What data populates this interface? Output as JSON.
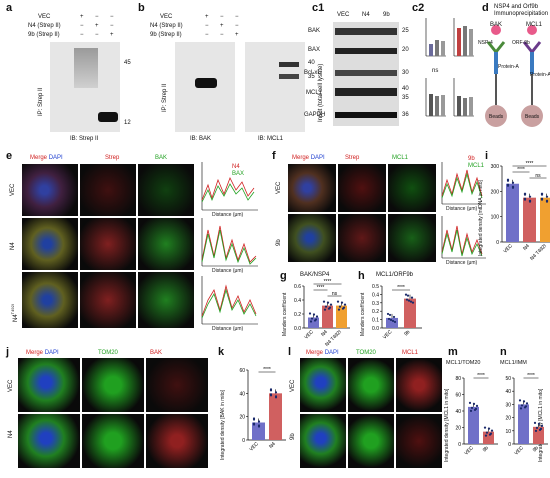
{
  "panels": {
    "a": {
      "label": "a",
      "rows": [
        "VEC",
        "N4 (Strep II)",
        "9b (Strep II)"
      ],
      "marks": [
        [
          "+",
          "−",
          "−"
        ],
        [
          "−",
          "+",
          "−"
        ],
        [
          "−",
          "−",
          "+"
        ]
      ],
      "side": "IP: Strep II",
      "ib": "IB: Strep II",
      "mw": [
        "45",
        "12"
      ]
    },
    "b": {
      "label": "b",
      "rows": [
        "VEC",
        "N4 (Strep II)",
        "9b (Strep II)"
      ],
      "marks": [
        [
          "+",
          "−",
          "−"
        ],
        [
          "−",
          "+",
          "−"
        ],
        [
          "−",
          "−",
          "+"
        ]
      ],
      "side": "IP: Strep II",
      "ib1": "IB: BAK",
      "ib2": "IB: MCL1",
      "mw": [
        "40",
        "35"
      ]
    },
    "c1": {
      "label": "c1",
      "cols": [
        "VEC",
        "N4",
        "9b"
      ],
      "side": "Input (total cell lysate)",
      "proteins": [
        "BAK",
        "BAX",
        "Bcl-xL",
        "MCL1",
        "GAPDH"
      ],
      "mw": [
        "25",
        "20",
        "30",
        "40",
        "35",
        "36"
      ]
    },
    "c2": {
      "label": "c2",
      "ns": "ns"
    },
    "d": {
      "label": "d",
      "title1": "NSP4 and Orf9b",
      "title2": "Immunoprecipitation",
      "bak": "BAK",
      "mcl1": "MCL1",
      "nsp4": "NSP-4",
      "orf9b": "ORF-9b",
      "protein_a": "Protein-A",
      "beads": "Beads"
    },
    "e": {
      "label": "e",
      "merge": "Merge",
      "dapi": "DAPI",
      "strep": "Strep",
      "bak": "BAK",
      "rows": [
        "VEC",
        "N4",
        "N4"
      ],
      "sup": "T492I",
      "leg1": "N4",
      "leg2": "BAX",
      "xlab": "Distance (μm)"
    },
    "f": {
      "label": "f",
      "merge": "Merge",
      "dapi": "DAPI",
      "strep": "Strep",
      "mcl1": "MCL1",
      "rows": [
        "VEC",
        "9b"
      ],
      "leg1": "9b",
      "leg2": "MCL1",
      "xlab": "Distance (μm)"
    },
    "i": {
      "label": "i",
      "ylab": "Integrated density [mtDNA in mito]",
      "sig1": "****",
      "sig2": "****",
      "ns": "ns"
    },
    "g": {
      "label": "g",
      "title": "BAK/NSP4",
      "ylab": "Manders coefficient",
      "sig1": "****",
      "sig2": "****",
      "ns": "ns"
    },
    "h": {
      "label": "h",
      "title": "MCL1/ORF9b",
      "ylab": "Manders coefficient",
      "sig": "****"
    },
    "j": {
      "label": "j",
      "merge": "Merge",
      "dapi": "DAPI",
      "tom20": "TOM20",
      "bak": "BAK",
      "rows": [
        "VEC",
        "N4"
      ]
    },
    "k": {
      "label": "k",
      "ylab": "Integrated density [BAK in mito]",
      "sig": "****"
    },
    "l": {
      "label": "l",
      "merge": "Merge",
      "dapi": "DAPI",
      "tom20": "TOM20",
      "mcl1": "MCL1",
      "rows": [
        "VEC",
        "9b"
      ]
    },
    "m": {
      "label": "m",
      "title": "MCL1/TOM20",
      "ylab": "Integrated density [MCL1 in mito]",
      "sig": "****"
    },
    "n": {
      "label": "n",
      "title": "MCL1/IMM",
      "ylab": "Integrated density [MCL1 in mito]",
      "sig": "****"
    }
  },
  "chart_data": [
    {
      "type": "bar",
      "panel": "i",
      "categories": [
        "VEC",
        "N4",
        "N4 T492I"
      ],
      "values": [
        230,
        175,
        175
      ],
      "ylim": [
        0,
        300
      ],
      "yticks": [
        "0",
        "100",
        "200",
        "300"
      ]
    },
    {
      "type": "bar",
      "panel": "g",
      "categories": [
        "VEC",
        "N4",
        "N4 T492I"
      ],
      "values": [
        0.15,
        0.32,
        0.32
      ],
      "ylim": [
        0,
        0.6
      ],
      "yticks": [
        "0.0",
        "0.2",
        "0.4",
        "0.6"
      ]
    },
    {
      "type": "bar",
      "panel": "h",
      "categories": [
        "VEC",
        "9b"
      ],
      "values": [
        0.12,
        0.35
      ],
      "ylim": [
        0,
        0.5
      ],
      "yticks": [
        "0.0",
        "0.1",
        "0.2",
        "0.3",
        "0.4",
        "0.5"
      ]
    },
    {
      "type": "bar",
      "panel": "k",
      "categories": [
        "VEC",
        "N4"
      ],
      "values": [
        15,
        40
      ],
      "ylim": [
        0,
        60
      ],
      "yticks": [
        "0",
        "20",
        "40",
        "60"
      ]
    },
    {
      "type": "bar",
      "panel": "m",
      "categories": [
        "VEC",
        "9b"
      ],
      "values": [
        45,
        15
      ],
      "ylim": [
        0,
        80
      ],
      "yticks": [
        "0",
        "20",
        "40",
        "60",
        "80"
      ]
    },
    {
      "type": "bar",
      "panel": "n",
      "categories": [
        "VEC",
        "9b"
      ],
      "values": [
        30,
        13
      ],
      "ylim": [
        0,
        50
      ],
      "yticks": [
        "0",
        "10",
        "20",
        "30",
        "40",
        "50"
      ]
    }
  ]
}
